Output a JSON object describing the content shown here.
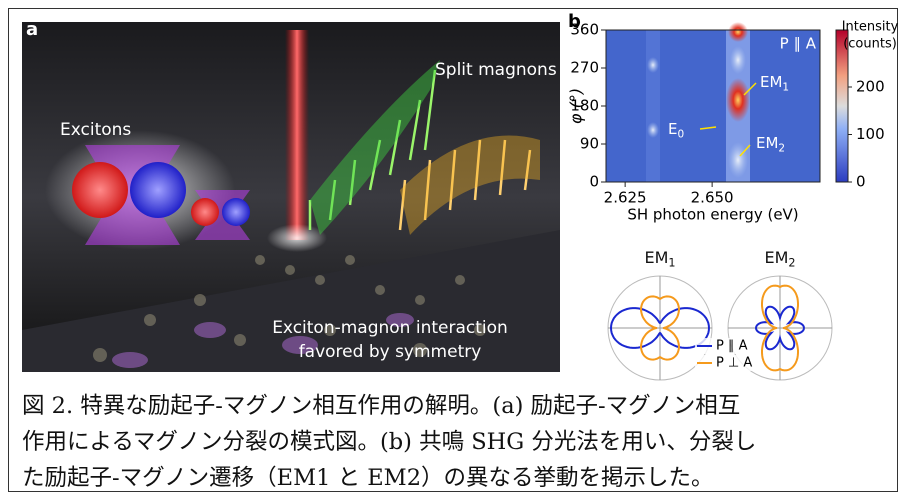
{
  "panel_a": {
    "label": "a",
    "excitons": "Excitons",
    "magnons": "Split magnons",
    "interaction": [
      "Exciton-magnon interaction",
      "favored by symmetry"
    ]
  },
  "chart_data": [
    {
      "type": "heatmap",
      "label": "b",
      "annotation": "P ∥ A",
      "xlabel": "SH photon energy (eV)",
      "ylabel": "φ (°)",
      "xlim": [
        2.6195,
        2.681
      ],
      "xticks": [
        2.625,
        {
          "value": 2.65,
          "label": "2.650"
        }
      ],
      "ylim": [
        0,
        360
      ],
      "yticks": [
        0,
        90,
        180,
        270,
        360
      ],
      "colorbar_label": [
        "Intensity",
        "(counts)"
      ],
      "clim": [
        0,
        320
      ],
      "cticks": [
        0,
        100,
        200
      ],
      "peaks": [
        {
          "text": "E",
          "sub": "0"
        },
        {
          "text": "EM",
          "sub": "1"
        },
        {
          "text": "EM",
          "sub": "2"
        }
      ]
    },
    {
      "type": "polar",
      "titles": [
        {
          "text": "EM",
          "sub": "1"
        },
        {
          "text": "EM",
          "sub": "2"
        }
      ],
      "series": [
        {
          "name": "P ∥ A",
          "color": "#1a28d0"
        },
        {
          "name": "P ⊥ A",
          "color": "#f59a1c"
        }
      ]
    }
  ],
  "caption": [
    "図 2. 特異な励起子-マグノン相互作用の解明。(a) 励起子-マグノン相互",
    "作用によるマグノン分裂の模式図。(b) 共鳴 SHG 分光法を用い、分裂し",
    "た励起子-マグノン遷移（EM1 と EM2）の異なる挙動を掲示した。"
  ]
}
